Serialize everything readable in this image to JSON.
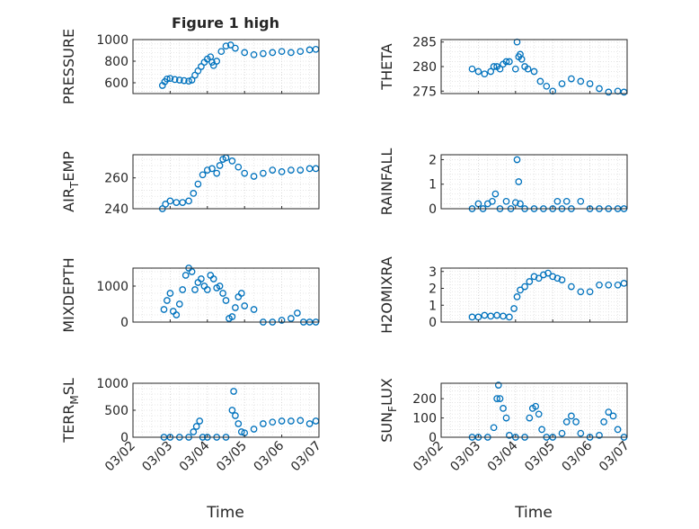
{
  "figure": {
    "title": "Figure 1 high",
    "xlabel": "Time",
    "marker_color": "#0072BD",
    "grid": "dotted minor + major",
    "date_ticks": [
      "03/02",
      "03/03",
      "03/04",
      "03/05",
      "03/06",
      "03/07"
    ]
  },
  "chart_data": [
    {
      "type": "scatter",
      "ylabel": "PRESSURE",
      "ylim": [
        500,
        1000
      ],
      "yticks": [
        "600",
        "800",
        "1000"
      ],
      "x": [
        "2024-03-02T19:00",
        "2024-03-02T20:30",
        "2024-03-02T22:00",
        "2024-03-03T00:00",
        "2024-03-03T03:00",
        "2024-03-03T06:00",
        "2024-03-03T09:00",
        "2024-03-03T12:00",
        "2024-03-03T14:00",
        "2024-03-03T16:00",
        "2024-03-03T18:00",
        "2024-03-03T20:00",
        "2024-03-03T22:00",
        "2024-03-04T00:00",
        "2024-03-04T02:00",
        "2024-03-04T03:00",
        "2024-03-04T04:00",
        "2024-03-04T06:00",
        "2024-03-04T09:00",
        "2024-03-04T12:00",
        "2024-03-04T15:00",
        "2024-03-04T18:00",
        "2024-03-05T00:00",
        "2024-03-05T06:00",
        "2024-03-05T12:00",
        "2024-03-05T18:00",
        "2024-03-06T00:00",
        "2024-03-06T06:00",
        "2024-03-06T12:00",
        "2024-03-06T18:00",
        "2024-03-06T22:00"
      ],
      "y": [
        575,
        610,
        635,
        640,
        630,
        625,
        620,
        615,
        625,
        670,
        710,
        750,
        790,
        820,
        840,
        790,
        760,
        800,
        890,
        940,
        950,
        920,
        880,
        860,
        870,
        880,
        890,
        880,
        890,
        905,
        910
      ]
    },
    {
      "type": "scatter",
      "ylabel": "THETA",
      "ylim": [
        274.5,
        285.5
      ],
      "yticks": [
        "275",
        "280",
        "285"
      ],
      "x": [
        "2024-03-02T20:00",
        "2024-03-03T00:00",
        "2024-03-03T04:00",
        "2024-03-03T08:00",
        "2024-03-03T10:00",
        "2024-03-03T12:00",
        "2024-03-03T14:00",
        "2024-03-03T16:00",
        "2024-03-03T18:00",
        "2024-03-03T20:00",
        "2024-03-04T00:00",
        "2024-03-04T01:00",
        "2024-03-04T02:00",
        "2024-03-04T03:00",
        "2024-03-04T04:00",
        "2024-03-04T06:00",
        "2024-03-04T08:00",
        "2024-03-04T12:00",
        "2024-03-04T16:00",
        "2024-03-04T20:00",
        "2024-03-05T00:00",
        "2024-03-05T06:00",
        "2024-03-05T12:00",
        "2024-03-05T18:00",
        "2024-03-06T00:00",
        "2024-03-06T06:00",
        "2024-03-06T12:00",
        "2024-03-06T18:00",
        "2024-03-06T22:00"
      ],
      "y": [
        279.5,
        279,
        278.5,
        279,
        280,
        280,
        279.5,
        280.5,
        281,
        281,
        279.5,
        285,
        282,
        282.5,
        281.5,
        280,
        279.5,
        279,
        277,
        276,
        275,
        276.5,
        277.5,
        277,
        276.5,
        275.5,
        274.8,
        275,
        274.8
      ]
    },
    {
      "type": "scatter",
      "ylabel": "AIR_TEMP",
      "ylabel_parts": [
        "AIR",
        "T",
        "EMP"
      ],
      "ylim": [
        240,
        275
      ],
      "yticks": [
        "240",
        "260"
      ],
      "x": [
        "2024-03-02T19:00",
        "2024-03-02T21:00",
        "2024-03-03T00:00",
        "2024-03-03T04:00",
        "2024-03-03T08:00",
        "2024-03-03T12:00",
        "2024-03-03T15:00",
        "2024-03-03T18:00",
        "2024-03-03T21:00",
        "2024-03-04T00:00",
        "2024-03-04T03:00",
        "2024-03-04T06:00",
        "2024-03-04T08:00",
        "2024-03-04T10:00",
        "2024-03-04T12:00",
        "2024-03-04T16:00",
        "2024-03-04T20:00",
        "2024-03-05T00:00",
        "2024-03-05T06:00",
        "2024-03-05T12:00",
        "2024-03-05T18:00",
        "2024-03-06T00:00",
        "2024-03-06T06:00",
        "2024-03-06T12:00",
        "2024-03-06T18:00",
        "2024-03-06T22:00"
      ],
      "y": [
        240,
        243,
        245,
        244,
        244,
        245,
        250,
        256,
        262,
        265,
        266,
        263,
        268,
        272,
        273,
        271,
        267,
        263,
        261,
        263,
        265,
        264,
        265,
        265,
        266,
        266
      ]
    },
    {
      "type": "scatter",
      "ylabel": "RAINFALL",
      "ylim": [
        0,
        2.2
      ],
      "yticks": [
        "0",
        "1",
        "2"
      ],
      "x": [
        "2024-03-02T20:00",
        "2024-03-03T00:00",
        "2024-03-03T03:00",
        "2024-03-03T06:00",
        "2024-03-03T09:00",
        "2024-03-03T11:00",
        "2024-03-03T14:00",
        "2024-03-03T18:00",
        "2024-03-03T21:00",
        "2024-03-04T00:00",
        "2024-03-04T01:00",
        "2024-03-04T02:00",
        "2024-03-04T03:00",
        "2024-03-04T06:00",
        "2024-03-04T12:00",
        "2024-03-04T18:00",
        "2024-03-05T00:00",
        "2024-03-05T03:00",
        "2024-03-05T06:00",
        "2024-03-05T09:00",
        "2024-03-05T12:00",
        "2024-03-05T18:00",
        "2024-03-06T00:00",
        "2024-03-06T06:00",
        "2024-03-06T12:00",
        "2024-03-06T18:00",
        "2024-03-06T22:00"
      ],
      "y": [
        0,
        0.2,
        0,
        0.2,
        0.3,
        0.6,
        0,
        0.3,
        0,
        0.25,
        2,
        1.1,
        0.2,
        0,
        0,
        0,
        0,
        0.3,
        0,
        0.3,
        0,
        0.3,
        0,
        0,
        0,
        0,
        0
      ]
    },
    {
      "type": "scatter",
      "ylabel": "MIXDEPTH",
      "ylim": [
        0,
        1500
      ],
      "yticks": [
        "0",
        "1000"
      ],
      "x": [
        "2024-03-02T20:00",
        "2024-03-02T22:00",
        "2024-03-03T00:00",
        "2024-03-03T02:00",
        "2024-03-03T04:00",
        "2024-03-03T06:00",
        "2024-03-03T08:00",
        "2024-03-03T10:00",
        "2024-03-03T12:00",
        "2024-03-03T14:00",
        "2024-03-03T16:00",
        "2024-03-03T18:00",
        "2024-03-03T20:00",
        "2024-03-03T22:00",
        "2024-03-04T00:00",
        "2024-03-04T02:00",
        "2024-03-04T04:00",
        "2024-03-04T06:00",
        "2024-03-04T08:00",
        "2024-03-04T10:00",
        "2024-03-04T12:00",
        "2024-03-04T14:00",
        "2024-03-04T16:00",
        "2024-03-04T18:00",
        "2024-03-04T20:00",
        "2024-03-04T22:00",
        "2024-03-05T00:00",
        "2024-03-05T06:00",
        "2024-03-05T12:00",
        "2024-03-05T18:00",
        "2024-03-06T00:00",
        "2024-03-06T06:00",
        "2024-03-06T10:00",
        "2024-03-06T14:00",
        "2024-03-06T18:00",
        "2024-03-06T22:00"
      ],
      "y": [
        350,
        600,
        800,
        300,
        200,
        500,
        900,
        1300,
        1500,
        1400,
        900,
        1100,
        1200,
        1000,
        900,
        1300,
        1200,
        950,
        1000,
        800,
        600,
        100,
        150,
        400,
        700,
        800,
        450,
        350,
        0,
        0,
        50,
        100,
        250,
        0,
        0,
        0
      ]
    },
    {
      "type": "scatter",
      "ylabel": "H2OMIXRA",
      "ylim": [
        0,
        3.2
      ],
      "yticks": [
        "0",
        "1",
        "2",
        "3"
      ],
      "x": [
        "2024-03-02T20:00",
        "2024-03-03T00:00",
        "2024-03-03T04:00",
        "2024-03-03T08:00",
        "2024-03-03T12:00",
        "2024-03-03T16:00",
        "2024-03-03T20:00",
        "2024-03-03T23:00",
        "2024-03-04T01:00",
        "2024-03-04T03:00",
        "2024-03-04T06:00",
        "2024-03-04T09:00",
        "2024-03-04T12:00",
        "2024-03-04T15:00",
        "2024-03-04T18:00",
        "2024-03-04T21:00",
        "2024-03-05T00:00",
        "2024-03-05T03:00",
        "2024-03-05T06:00",
        "2024-03-05T12:00",
        "2024-03-05T18:00",
        "2024-03-06T00:00",
        "2024-03-06T06:00",
        "2024-03-06T12:00",
        "2024-03-06T18:00",
        "2024-03-06T22:00"
      ],
      "y": [
        0.3,
        0.3,
        0.4,
        0.35,
        0.4,
        0.35,
        0.3,
        0.8,
        1.5,
        1.9,
        2.1,
        2.4,
        2.7,
        2.6,
        2.8,
        2.9,
        2.7,
        2.6,
        2.5,
        2.1,
        1.8,
        1.8,
        2.2,
        2.2,
        2.2,
        2.3
      ]
    },
    {
      "type": "scatter",
      "ylabel": "TERR_MSL",
      "ylabel_parts": [
        "TERR",
        "M",
        "SL"
      ],
      "ylim": [
        0,
        1000
      ],
      "yticks": [
        "0",
        "500",
        "1000"
      ],
      "x": [
        "2024-03-02T20:00",
        "2024-03-03T00:00",
        "2024-03-03T06:00",
        "2024-03-03T12:00",
        "2024-03-03T15:00",
        "2024-03-03T17:00",
        "2024-03-03T19:00",
        "2024-03-03T21:00",
        "2024-03-04T00:00",
        "2024-03-04T06:00",
        "2024-03-04T12:00",
        "2024-03-04T16:00",
        "2024-03-04T17:00",
        "2024-03-04T18:00",
        "2024-03-04T20:00",
        "2024-03-04T22:00",
        "2024-03-05T00:00",
        "2024-03-05T06:00",
        "2024-03-05T12:00",
        "2024-03-05T18:00",
        "2024-03-06T00:00",
        "2024-03-06T06:00",
        "2024-03-06T12:00",
        "2024-03-06T18:00",
        "2024-03-06T22:00"
      ],
      "y": [
        0,
        0,
        0,
        0,
        100,
        200,
        300,
        0,
        0,
        0,
        0,
        500,
        850,
        400,
        250,
        100,
        80,
        150,
        250,
        280,
        300,
        300,
        310,
        250,
        300
      ]
    },
    {
      "type": "scatter",
      "ylabel": "SUN_FLUX",
      "ylabel_parts": [
        "SUN",
        "F",
        "LUX"
      ],
      "ylim": [
        0,
        280
      ],
      "yticks": [
        "0",
        "100",
        "200"
      ],
      "x": [
        "2024-03-02T20:00",
        "2024-03-03T00:00",
        "2024-03-03T06:00",
        "2024-03-03T10:00",
        "2024-03-03T12:00",
        "2024-03-03T13:00",
        "2024-03-03T14:00",
        "2024-03-03T16:00",
        "2024-03-03T18:00",
        "2024-03-03T20:00",
        "2024-03-04T00:00",
        "2024-03-04T06:00",
        "2024-03-04T09:00",
        "2024-03-04T11:00",
        "2024-03-04T13:00",
        "2024-03-04T15:00",
        "2024-03-04T17:00",
        "2024-03-04T20:00",
        "2024-03-05T00:00",
        "2024-03-05T06:00",
        "2024-03-05T09:00",
        "2024-03-05T12:00",
        "2024-03-05T15:00",
        "2024-03-05T18:00",
        "2024-03-06T00:00",
        "2024-03-06T06:00",
        "2024-03-06T09:00",
        "2024-03-06T12:00",
        "2024-03-06T15:00",
        "2024-03-06T18:00",
        "2024-03-06T22:00"
      ],
      "y": [
        0,
        0,
        0,
        50,
        200,
        270,
        200,
        150,
        100,
        10,
        0,
        0,
        100,
        150,
        160,
        120,
        40,
        0,
        0,
        20,
        80,
        110,
        80,
        20,
        0,
        10,
        80,
        130,
        110,
        40,
        0
      ]
    }
  ]
}
